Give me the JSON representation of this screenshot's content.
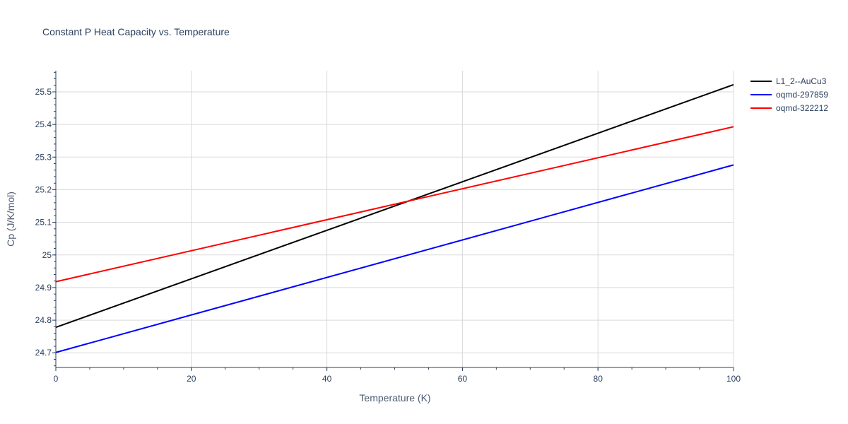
{
  "chart_data": {
    "type": "line",
    "title": "Constant P Heat Capacity vs. Temperature",
    "xlabel": "Temperature (K)",
    "ylabel": "Cp (J/K/mol)",
    "xlim": [
      0,
      100
    ],
    "ylim": [
      24.655,
      25.565
    ],
    "x_ticks": [
      0,
      20,
      40,
      60,
      80,
      100
    ],
    "y_ticks": [
      24.7,
      24.8,
      24.9,
      25,
      25.1,
      25.2,
      25.3,
      25.4,
      25.5
    ],
    "y_tick_labels": [
      "24.7",
      "24.8",
      "24.9",
      "25",
      "25.1",
      "25.2",
      "25.3",
      "25.4",
      "25.5"
    ],
    "grid": true,
    "legend_position": "top-right",
    "series": [
      {
        "name": "L1_2--AuCu3",
        "color": "#000000",
        "x": [
          0,
          100
        ],
        "y": [
          24.778,
          25.522
        ]
      },
      {
        "name": "oqmd-297859",
        "color": "#0000ff",
        "x": [
          0,
          100
        ],
        "y": [
          24.701,
          25.276
        ]
      },
      {
        "name": "oqmd-322212",
        "color": "#ff0000",
        "x": [
          0,
          100
        ],
        "y": [
          24.918,
          25.393
        ]
      }
    ]
  }
}
